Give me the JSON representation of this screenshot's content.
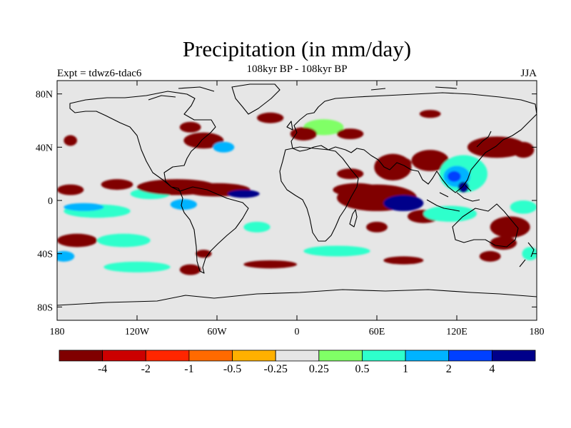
{
  "figure": {
    "title": "Precipitation (in mm/day)",
    "subtitle": "108kyr BP - 108kyr BP",
    "left_label": "Expt = tdwz6-tdac6",
    "right_label": "JJA"
  },
  "map": {
    "projection": "cylindrical equidistant",
    "lon_range": [
      -180,
      180
    ],
    "lat_range": [
      -90,
      90
    ],
    "background_color": "#e6e6e6",
    "y_ticks": [
      {
        "lat": 80,
        "label": "80N"
      },
      {
        "lat": 40,
        "label": "40N"
      },
      {
        "lat": 0,
        "label": "0"
      },
      {
        "lat": -40,
        "label": "40S"
      },
      {
        "lat": -80,
        "label": "80S"
      }
    ],
    "x_ticks": [
      {
        "lon": -180,
        "label": "180"
      },
      {
        "lon": -120,
        "label": "120W"
      },
      {
        "lon": -60,
        "label": "60W"
      },
      {
        "lon": 0,
        "label": "0"
      },
      {
        "lon": 60,
        "label": "60E"
      },
      {
        "lon": 120,
        "label": "120E"
      },
      {
        "lon": 180,
        "label": "180"
      }
    ]
  },
  "colorbar": {
    "colors": [
      "#800000",
      "#cc0000",
      "#ff2600",
      "#ff6a00",
      "#ffb000",
      "#e6e6e6",
      "#80ff66",
      "#2effcc",
      "#00b3ff",
      "#0040ff",
      "#00008a"
    ],
    "labels": [
      "-4",
      "-2",
      "-1",
      "-0.5",
      "-0.25",
      "0.25",
      "0.5",
      "1",
      "2",
      "4"
    ]
  },
  "chart_data": {
    "type": "heatmap",
    "title": "Precipitation (in mm/day)",
    "subtitle": "108kyr BP - 108kyr BP",
    "season": "JJA",
    "experiment": "tdwz6-tdac6",
    "contour_levels": [
      -4,
      -2,
      -1,
      -0.5,
      -0.25,
      0.25,
      0.5,
      1,
      2,
      4
    ],
    "features": [
      {
        "lon": 60,
        "lat": 2,
        "rx": 30,
        "ry": 10,
        "level": -2
      },
      {
        "lon": 80,
        "lat": -2,
        "rx": 15,
        "ry": 6,
        "level": -4
      },
      {
        "lon": 45,
        "lat": 8,
        "rx": 18,
        "ry": 5,
        "level": -0.5
      },
      {
        "lon": 72,
        "lat": 25,
        "rx": 14,
        "ry": 10,
        "level": -1
      },
      {
        "lon": 80,
        "lat": 28,
        "rx": 6,
        "ry": 4,
        "level": -2
      },
      {
        "lon": 100,
        "lat": 30,
        "rx": 14,
        "ry": 8,
        "level": -0.5
      },
      {
        "lon": 125,
        "lat": 20,
        "rx": 18,
        "ry": 14,
        "level": 0.5
      },
      {
        "lon": 120,
        "lat": 18,
        "rx": 10,
        "ry": 8,
        "level": 1
      },
      {
        "lon": 118,
        "lat": 18,
        "rx": 5,
        "ry": 4,
        "level": 2
      },
      {
        "lon": 125,
        "lat": 10,
        "rx": 4,
        "ry": 4,
        "level": 4
      },
      {
        "lon": 150,
        "lat": 40,
        "rx": 22,
        "ry": 8,
        "level": -1
      },
      {
        "lon": 170,
        "lat": 38,
        "rx": 8,
        "ry": 6,
        "level": -2
      },
      {
        "lon": 95,
        "lat": -12,
        "rx": 12,
        "ry": 5,
        "level": -0.5
      },
      {
        "lon": 115,
        "lat": -10,
        "rx": 20,
        "ry": 6,
        "level": 0.5
      },
      {
        "lon": 160,
        "lat": -20,
        "rx": 15,
        "ry": 8,
        "level": -1
      },
      {
        "lon": 155,
        "lat": -32,
        "rx": 10,
        "ry": 5,
        "level": -0.5
      },
      {
        "lon": 145,
        "lat": -42,
        "rx": 8,
        "ry": 4,
        "level": -2
      },
      {
        "lon": 175,
        "lat": -40,
        "rx": 6,
        "ry": 5,
        "level": 0.5
      },
      {
        "lon": -90,
        "lat": 10,
        "rx": 30,
        "ry": 6,
        "level": -1
      },
      {
        "lon": -60,
        "lat": 8,
        "rx": 25,
        "ry": 5,
        "level": -2
      },
      {
        "lon": -40,
        "lat": 5,
        "rx": 12,
        "ry": 3,
        "level": -4
      },
      {
        "lon": -170,
        "lat": 8,
        "rx": 10,
        "ry": 4,
        "level": -1
      },
      {
        "lon": -135,
        "lat": 12,
        "rx": 12,
        "ry": 4,
        "level": -0.5
      },
      {
        "lon": -110,
        "lat": 5,
        "rx": 15,
        "ry": 4,
        "level": 0.5
      },
      {
        "lon": -85,
        "lat": -3,
        "rx": 10,
        "ry": 4,
        "level": 1
      },
      {
        "lon": -150,
        "lat": -8,
        "rx": 25,
        "ry": 5,
        "level": 0.5
      },
      {
        "lon": -160,
        "lat": -5,
        "rx": 15,
        "ry": 3,
        "level": 1
      },
      {
        "lon": -165,
        "lat": -30,
        "rx": 15,
        "ry": 5,
        "level": -0.5
      },
      {
        "lon": -130,
        "lat": -30,
        "rx": 20,
        "ry": 5,
        "level": 0.5
      },
      {
        "lon": -175,
        "lat": -42,
        "rx": 8,
        "ry": 4,
        "level": 1
      },
      {
        "lon": -70,
        "lat": 45,
        "rx": 15,
        "ry": 6,
        "level": -0.5
      },
      {
        "lon": -55,
        "lat": 40,
        "rx": 8,
        "ry": 4,
        "level": 1
      },
      {
        "lon": -80,
        "lat": 55,
        "rx": 8,
        "ry": 4,
        "level": -1
      },
      {
        "lon": -170,
        "lat": 45,
        "rx": 5,
        "ry": 4,
        "level": -0.5
      },
      {
        "lon": 5,
        "lat": 50,
        "rx": 10,
        "ry": 5,
        "level": -0.5
      },
      {
        "lon": 20,
        "lat": 55,
        "rx": 15,
        "ry": 6,
        "level": 0.25
      },
      {
        "lon": 40,
        "lat": 50,
        "rx": 10,
        "ry": 4,
        "level": -0.5
      },
      {
        "lon": -20,
        "lat": -48,
        "rx": 20,
        "ry": 3,
        "level": -0.5
      },
      {
        "lon": 30,
        "lat": -38,
        "rx": 25,
        "ry": 4,
        "level": 0.5
      },
      {
        "lon": 80,
        "lat": -45,
        "rx": 15,
        "ry": 3,
        "level": -0.5
      },
      {
        "lon": -70,
        "lat": -40,
        "rx": 6,
        "ry": 3,
        "level": -1
      },
      {
        "lon": -30,
        "lat": -20,
        "rx": 10,
        "ry": 4,
        "level": 0.5
      },
      {
        "lon": 60,
        "lat": -20,
        "rx": 8,
        "ry": 4,
        "level": -0.5
      },
      {
        "lon": -120,
        "lat": -50,
        "rx": 25,
        "ry": 4,
        "level": 0.5
      },
      {
        "lon": -80,
        "lat": -52,
        "rx": 8,
        "ry": 4,
        "level": -1
      },
      {
        "lon": 40,
        "lat": 20,
        "rx": 10,
        "ry": 4,
        "level": -1
      },
      {
        "lon": 170,
        "lat": -5,
        "rx": 10,
        "ry": 5,
        "level": 0.5
      },
      {
        "lon": -20,
        "lat": 62,
        "rx": 10,
        "ry": 4,
        "level": -0.5
      },
      {
        "lon": 100,
        "lat": 65,
        "rx": 8,
        "ry": 3,
        "level": -0.5
      }
    ]
  }
}
